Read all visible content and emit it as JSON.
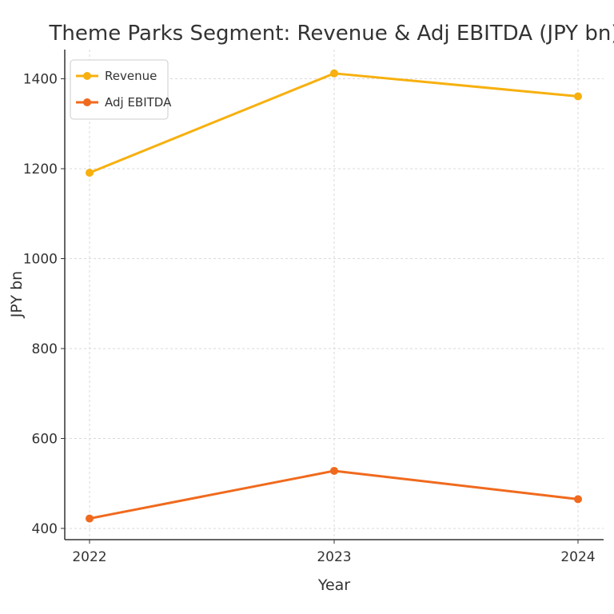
{
  "chart_data": {
    "type": "line",
    "title": "Theme Parks Segment: Revenue & Adj EBITDA (JPY bn)",
    "xlabel": "Year",
    "ylabel": "JPY bn",
    "categories": [
      "2022",
      "2023",
      "2024"
    ],
    "ylim": [
      375,
      1465
    ],
    "yticks": [
      400,
      600,
      800,
      1000,
      1200,
      1400
    ],
    "grid": true,
    "legend_position": "top-left",
    "series": [
      {
        "name": "Revenue",
        "values": [
          1191,
          1412,
          1361
        ],
        "color": "#F7B00F"
      },
      {
        "name": "Adj EBITDA",
        "values": [
          422,
          528,
          465
        ],
        "color": "#F06A1E"
      }
    ]
  }
}
